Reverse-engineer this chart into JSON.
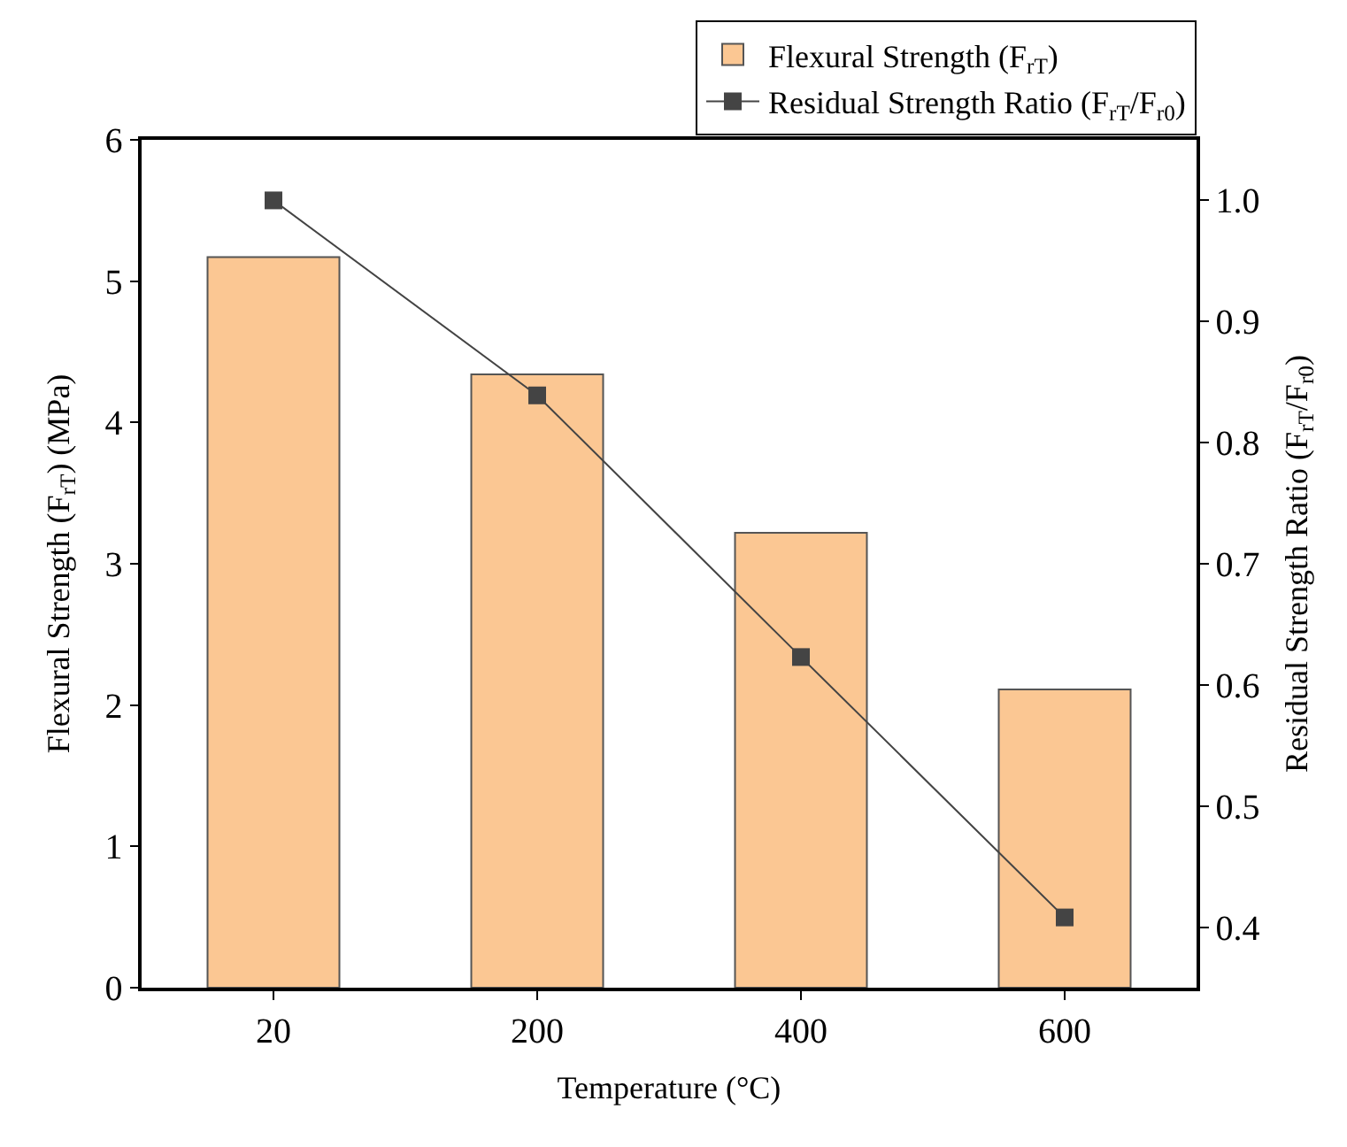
{
  "chart_data": {
    "type": "bar",
    "xlabel": "Temperature (°C)",
    "ylabel": "Flexural Strength (F$_{rT}$) (MPa)",
    "y2label": "Residual Strength Ratio (F$_{rT}$/F$_{r0}$)",
    "categories": [
      "20",
      "200",
      "400",
      "600"
    ],
    "series": [
      {
        "name": "Flexural Strength (F$_{rT}$)",
        "color": "#fbc793",
        "values": [
          5.17,
          4.34,
          3.22,
          2.11
        ]
      },
      {
        "name": "Residual Strength Ratio (F$_{rT}$/F$_{r0}$)",
        "type": "line",
        "axis": "y2",
        "color": "#444444",
        "marker": "square",
        "line_style": "solid",
        "values": [
          1.0,
          0.839,
          0.623,
          0.408
        ]
      }
    ],
    "ylim": [
      0,
      6
    ],
    "yticks": [
      0,
      1,
      2,
      3,
      4,
      5,
      6
    ],
    "y2lim": [
      0.35,
      1.05
    ],
    "y2ticks": [
      {
        "value": 0.4,
        "label": "0.4"
      },
      {
        "value": 0.5,
        "label": "0.5"
      },
      {
        "value": 0.6,
        "label": "0.6"
      },
      {
        "value": 0.7,
        "label": "0.7"
      },
      {
        "value": 0.8,
        "label": "0.8"
      },
      {
        "value": 0.9,
        "label": "0.9"
      },
      {
        "value": 1.0,
        "label": "1.0"
      }
    ],
    "legend": "top right"
  }
}
